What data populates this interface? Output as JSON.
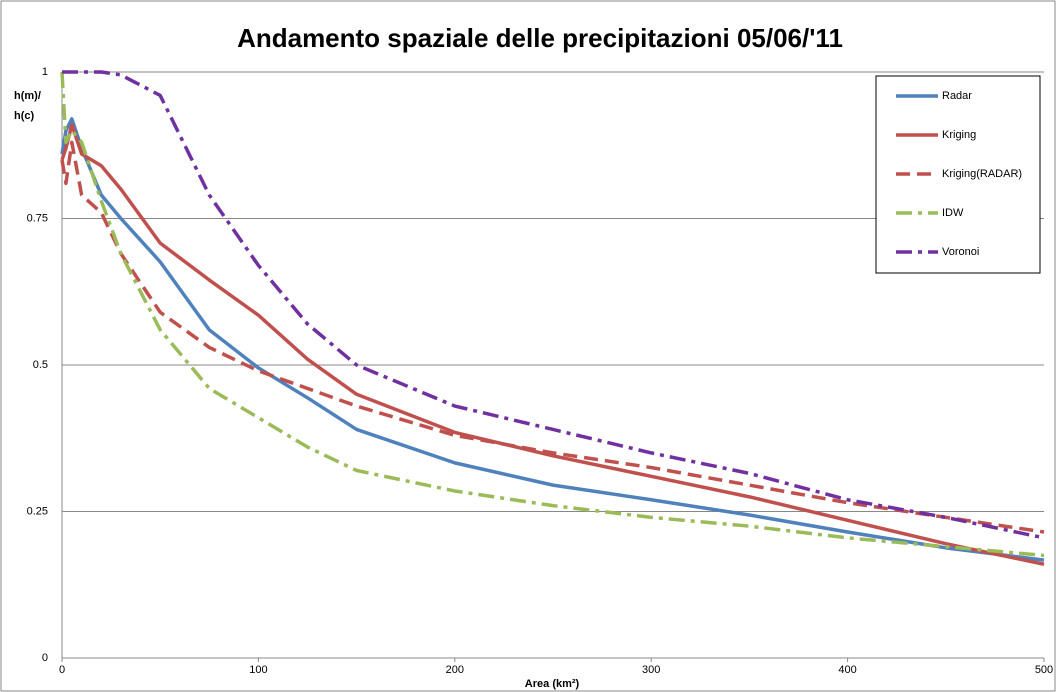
{
  "chart_data": {
    "type": "line",
    "title": "Andamento spaziale delle precipitazioni 05/06/'11",
    "x_label": "Area (km²)",
    "y_label": "h(m)/ h(c)",
    "x": [
      0,
      2,
      5,
      10,
      20,
      30,
      50,
      75,
      100,
      125,
      150,
      200,
      250,
      300,
      350,
      400,
      450,
      500
    ],
    "series": [
      {
        "name": "Radar",
        "color": "#4f81bd",
        "dash": "solid",
        "values": [
          0.86,
          0.9,
          0.92,
          0.87,
          0.79,
          0.75,
          0.676,
          0.56,
          0.495,
          0.444,
          0.39,
          0.333,
          0.295,
          0.27,
          0.244,
          0.215,
          0.188,
          0.167
        ]
      },
      {
        "name": "Kriging",
        "color": "#c0504d",
        "dash": "solid",
        "values": [
          0.85,
          0.87,
          0.91,
          0.86,
          0.84,
          0.8,
          0.708,
          0.645,
          0.585,
          0.51,
          0.45,
          0.385,
          0.345,
          0.31,
          0.275,
          0.235,
          0.195,
          0.16
        ]
      },
      {
        "name": "Kriging(RADAR)",
        "color": "#c0504d",
        "dash": "dash",
        "values": [
          0.85,
          0.81,
          0.88,
          0.79,
          0.76,
          0.69,
          0.59,
          0.53,
          0.49,
          0.46,
          0.43,
          0.38,
          0.35,
          0.325,
          0.295,
          0.265,
          0.24,
          0.215
        ]
      },
      {
        "name": "IDW",
        "color": "#9bbb59",
        "dash": "dashdot",
        "values": [
          1,
          0.88,
          0.9,
          0.88,
          0.78,
          0.69,
          0.56,
          0.46,
          0.41,
          0.36,
          0.32,
          0.285,
          0.26,
          0.24,
          0.225,
          0.205,
          0.19,
          0.175
        ]
      },
      {
        "name": "Voronoi",
        "color": "#7030a0",
        "dash": "dashdot",
        "values": [
          1,
          1,
          1,
          1,
          1,
          0.995,
          0.96,
          0.79,
          0.67,
          0.57,
          0.5,
          0.43,
          0.39,
          0.35,
          0.315,
          0.27,
          0.24,
          0.205
        ]
      }
    ],
    "xlim": [
      0,
      500
    ],
    "xticks": [
      0,
      100,
      200,
      300,
      400,
      500
    ],
    "ylim": [
      0,
      1
    ],
    "yticks": [
      0,
      0.25,
      0.5,
      0.75,
      1
    ],
    "grid": true,
    "legend": "top-right"
  }
}
